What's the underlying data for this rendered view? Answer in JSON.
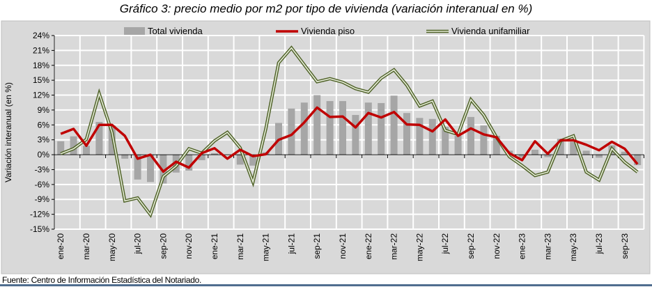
{
  "title": "Gráfico 3: precio medio por m2 por tipo de vivienda (variación interanual en %)",
  "footer": "Fuente: Centro de Información Estadística del Notariado.",
  "chart_data": {
    "type": "bar+line",
    "title": "Gráfico 3: precio medio por m2 por tipo de vivienda (variación interanual en %)",
    "xlabel": "",
    "ylabel": "Variación interanual (en %)",
    "ylim": [
      -15,
      24
    ],
    "yticks": [
      24,
      21,
      18,
      15,
      12,
      9,
      6,
      3,
      0,
      -3,
      -6,
      -9,
      -12,
      -15
    ],
    "ytick_labels": [
      "24%",
      "21%",
      "18%",
      "15%",
      "12%",
      "9%",
      "6%",
      "3%",
      "0%",
      "-3%",
      "-6%",
      "-9%",
      "-12%",
      "-15%"
    ],
    "grid": true,
    "legend_position": "top",
    "categories": [
      "ene-20",
      "feb-20",
      "mar-20",
      "abr-20",
      "may-20",
      "jun-20",
      "jul-20",
      "ago-20",
      "sep-20",
      "oct-20",
      "nov-20",
      "dic-20",
      "ene-21",
      "feb-21",
      "mar-21",
      "abr-21",
      "may-21",
      "jun-21",
      "jul-21",
      "ago-21",
      "sep-21",
      "oct-21",
      "nov-21",
      "dic-21",
      "ene-22",
      "feb-22",
      "mar-22",
      "abr-22",
      "may-22",
      "jun-22",
      "jul-22",
      "ago-22",
      "sep-22",
      "oct-22",
      "nov-22",
      "dic-22",
      "ene-23",
      "feb-23",
      "mar-23",
      "abr-23",
      "may-23",
      "jun-23",
      "jul-23",
      "ago-23",
      "sep-23",
      "oct-23"
    ],
    "xtick_labels": [
      "ene-20",
      "mar-20",
      "may-20",
      "jul-20",
      "sep-20",
      "nov-20",
      "ene-21",
      "mar-21",
      "may-21",
      "jul-21",
      "sep-21",
      "nov-21",
      "ene-22",
      "mar-22",
      "may-22",
      "jul-22",
      "sep-22",
      "nov-22",
      "ene-23",
      "mar-23",
      "may-23",
      "jul-23",
      "sep-23"
    ],
    "series": [
      {
        "name": "Total vivienda",
        "kind": "bar",
        "color": "#a6a6a6",
        "values": [
          2.7,
          3.7,
          1.8,
          6.6,
          5.9,
          -0.8,
          -5.0,
          -5.5,
          -5.8,
          -3.6,
          -3.2,
          -1.1,
          0.3,
          0.0,
          -2.0,
          -2.2,
          0.5,
          6.4,
          9.3,
          10.5,
          12.0,
          10.8,
          10.8,
          8.0,
          10.5,
          10.4,
          11.9,
          8.4,
          7.4,
          7.2,
          5.6,
          3.8,
          7.6,
          5.9,
          3.8,
          0.8,
          -0.6,
          1.0,
          -0.5,
          3.2,
          2.6,
          0.8,
          -0.6,
          1.9,
          0.6,
          -2.1
        ]
      },
      {
        "name": "Vivienda piso",
        "kind": "line",
        "color": "#c00000",
        "values": [
          4.2,
          5.2,
          1.8,
          6.0,
          6.0,
          3.8,
          -0.8,
          0.0,
          -3.4,
          -1.4,
          -2.6,
          0.3,
          1.3,
          -0.8,
          1.0,
          -0.3,
          0.1,
          3.0,
          4.0,
          6.5,
          9.5,
          7.6,
          7.7,
          5.5,
          8.4,
          7.5,
          8.6,
          6.1,
          6.0,
          4.7,
          7.1,
          3.8,
          5.3,
          4.1,
          3.5,
          0.3,
          -1.1,
          2.7,
          0.2,
          2.9,
          2.9,
          2.0,
          0.9,
          2.6,
          1.2,
          -1.9
        ]
      },
      {
        "name": "Vivienda unifamiliar",
        "kind": "line-double",
        "color": "#4f6228",
        "values": [
          0.2,
          1.2,
          3.1,
          12.3,
          4.5,
          -9.3,
          -8.7,
          -12.1,
          -4.4,
          -2.3,
          1.2,
          0.3,
          2.8,
          4.5,
          1.4,
          -5.5,
          5.2,
          18.5,
          21.5,
          18.1,
          14.7,
          15.3,
          14.6,
          13.3,
          12.6,
          15.4,
          17.1,
          14.0,
          9.8,
          10.8,
          4.9,
          4.1,
          11.1,
          8.0,
          3.5,
          -0.4,
          -2.2,
          -4.2,
          -3.5,
          2.8,
          3.8,
          -3.5,
          -5.1,
          1.2,
          -1.5,
          -3.5
        ]
      }
    ]
  }
}
